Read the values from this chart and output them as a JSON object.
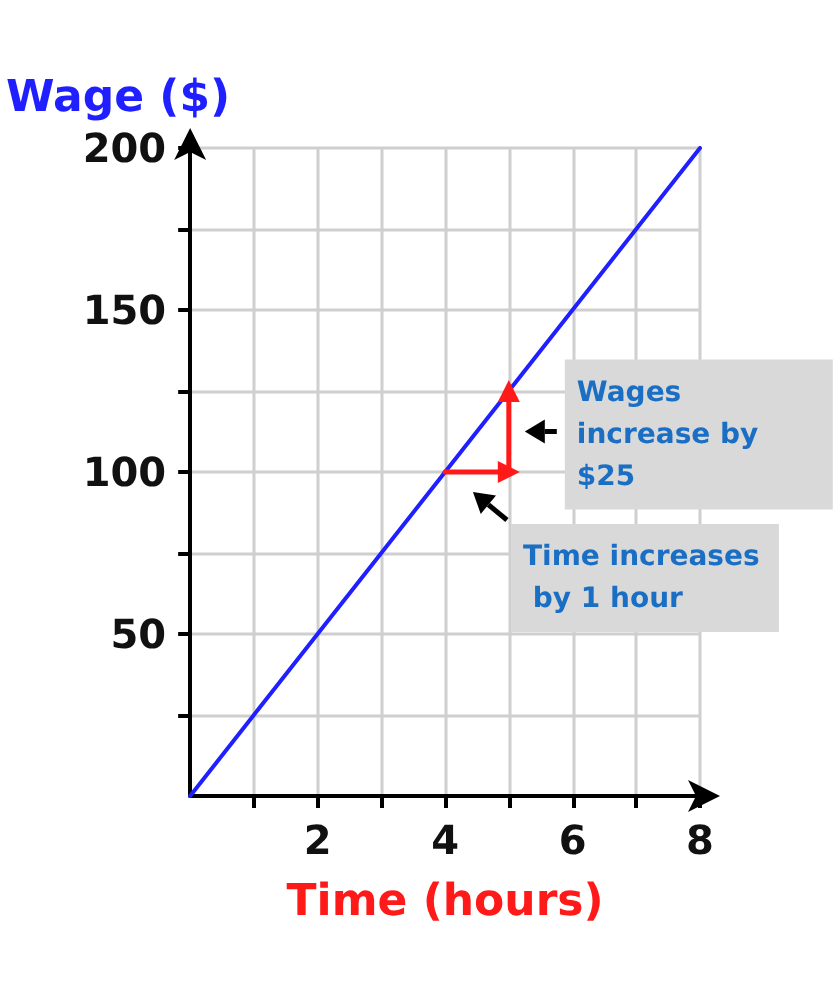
{
  "chart_data": {
    "type": "line",
    "xlabel": "Time (hours)",
    "ylabel": "Wage ($)",
    "xlim": [
      0,
      8
    ],
    "ylim": [
      0,
      200
    ],
    "xticks": [
      {
        "value": 1,
        "label": null
      },
      2,
      {
        "value": 3,
        "label": null
      },
      4,
      {
        "value": 5,
        "label": null
      },
      6,
      {
        "value": 7,
        "label": null
      },
      8
    ],
    "yticks": [
      {
        "value": 25,
        "label": null
      },
      50,
      {
        "value": 75,
        "label": null
      },
      100,
      {
        "value": 125,
        "label": null
      },
      150,
      {
        "value": 175,
        "label": null
      },
      200
    ],
    "grid": true,
    "line_style": "solid",
    "series": [
      {
        "color": "#1f1fff",
        "x": [
          0,
          8
        ],
        "values": [
          0,
          200
        ]
      },
      {
        "color": "#ff1a1a",
        "x": [
          4,
          5
        ],
        "values": [
          100,
          100
        ]
      },
      {
        "color": "#ff1a1a",
        "x": [
          5,
          5
        ],
        "values": [
          100,
          125
        ]
      }
    ],
    "annotations": [
      {
        "text": "Wages increase by $25",
        "x": 5,
        "y": 112.5
      },
      {
        "text": "Time increases by 1 hour",
        "x": 4.5,
        "y": 100
      }
    ]
  }
}
